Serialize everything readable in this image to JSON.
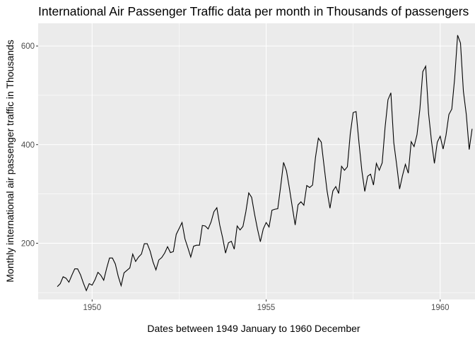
{
  "chart_data": {
    "type": "line",
    "title": "International Air Passenger Traffic data per month in Thousands of passengers",
    "xlabel": "Dates between 1949 January to 1960 December",
    "ylabel": "Monthly international air passenger traffic in Thousands",
    "x_tick_labels": [
      "1950",
      "1955",
      "1960"
    ],
    "y_tick_labels": [
      "200",
      "400",
      "600"
    ],
    "x_ticks": [
      1950,
      1955,
      1960
    ],
    "y_ticks": [
      200,
      400,
      600
    ],
    "xlim": [
      1948.45,
      1961.0
    ],
    "ylim": [
      86,
      646
    ],
    "grid": true,
    "x_start": 1949.0,
    "x_step": 0.0833333,
    "series": [
      {
        "values": [
          112,
          118,
          132,
          129,
          121,
          135,
          148,
          148,
          136,
          119,
          104,
          118,
          115,
          126,
          141,
          135,
          125,
          149,
          170,
          170,
          158,
          133,
          114,
          140,
          145,
          150,
          178,
          163,
          172,
          178,
          199,
          199,
          184,
          162,
          146,
          166,
          171,
          180,
          193,
          181,
          183,
          218,
          230,
          242,
          209,
          191,
          172,
          194,
          196,
          196,
          236,
          235,
          229,
          243,
          264,
          272,
          237,
          211,
          180,
          201,
          204,
          188,
          235,
          227,
          234,
          264,
          302,
          293,
          259,
          229,
          203,
          229,
          242,
          233,
          267,
          269,
          270,
          315,
          364,
          347,
          312,
          274,
          237,
          278,
          284,
          277,
          317,
          313,
          318,
          374,
          413,
          405,
          355,
          306,
          271,
          306,
          315,
          301,
          356,
          348,
          355,
          422,
          465,
          467,
          404,
          347,
          305,
          336,
          340,
          318,
          362,
          348,
          363,
          435,
          491,
          505,
          404,
          359,
          310,
          337,
          360,
          342,
          406,
          396,
          420,
          472,
          548,
          559,
          463,
          407,
          362,
          405,
          417,
          391,
          419,
          461,
          472,
          535,
          622,
          606,
          508,
          461,
          390,
          432
        ]
      }
    ],
    "colors": {
      "panel_background": "#ebebeb",
      "grid_major": "#ffffff",
      "line": "#000000",
      "tick_text": "#4d4d4d",
      "tick_mark": "#333333"
    }
  }
}
